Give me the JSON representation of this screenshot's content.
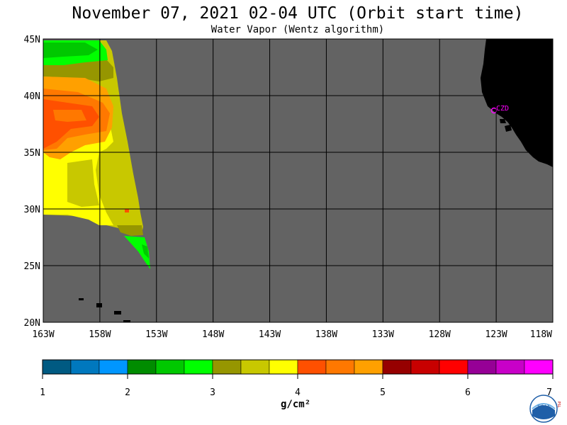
{
  "title": "November 07, 2021  02-04 UTC  (Orbit start time)",
  "subtitle": "Water Vapor (Wentz algorithm)",
  "map": {
    "lon_range": [
      -163,
      -118
    ],
    "lat_range": [
      20,
      45
    ],
    "lat_ticks": [
      {
        "value": 45,
        "label": "45N"
      },
      {
        "value": 40,
        "label": "40N"
      },
      {
        "value": 35,
        "label": "35N"
      },
      {
        "value": 30,
        "label": "30N"
      },
      {
        "value": 25,
        "label": "25N"
      },
      {
        "value": 20,
        "label": "20N"
      }
    ],
    "lon_ticks": [
      {
        "value": -163,
        "label": "163W"
      },
      {
        "value": -158,
        "label": "158W"
      },
      {
        "value": -153,
        "label": "153W"
      },
      {
        "value": -148,
        "label": "148W"
      },
      {
        "value": -143,
        "label": "143W"
      },
      {
        "value": -138,
        "label": "138W"
      },
      {
        "value": -133,
        "label": "133W"
      },
      {
        "value": -128,
        "label": "128W"
      },
      {
        "value": -123,
        "label": "123W"
      },
      {
        "value": -118,
        "label": "118W"
      }
    ],
    "marker_label": "CZD",
    "colors": {
      "ocean": "#636363",
      "land": "#000000",
      "grid": "#000000",
      "marker": "#ff00ff"
    }
  },
  "colorbar": {
    "unit": "g/cm²",
    "tick_labels": [
      "1",
      "2",
      "3",
      "4",
      "5",
      "6",
      "7"
    ],
    "colors": [
      "#005a82",
      "#0078be",
      "#0096ff",
      "#008c00",
      "#00c800",
      "#00ff00",
      "#969600",
      "#c8c800",
      "#ffff00",
      "#ff5000",
      "#ff7800",
      "#ffa000",
      "#960000",
      "#c80000",
      "#ff0000",
      "#960096",
      "#c800c8",
      "#ff00ff"
    ]
  },
  "logo": {
    "text": "NOAA",
    "side_text": "PSL"
  }
}
